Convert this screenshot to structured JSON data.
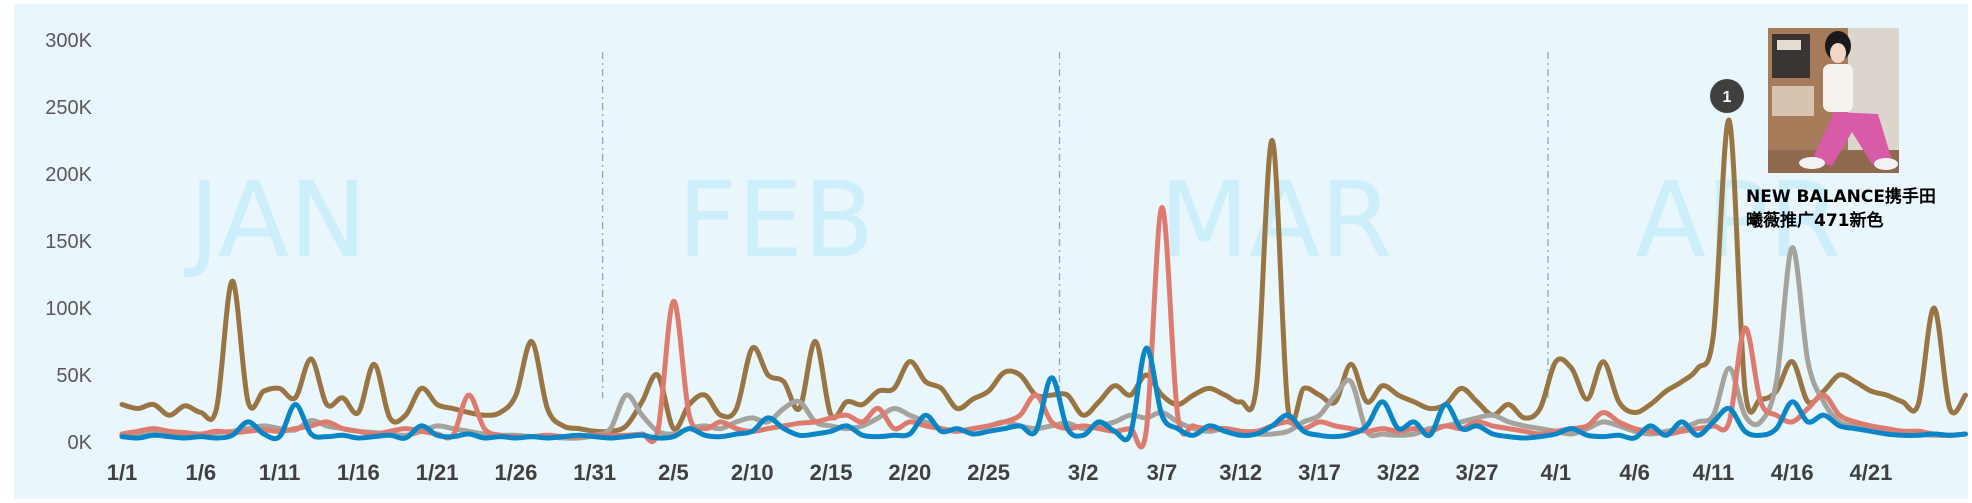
{
  "chart_data": {
    "type": "line",
    "y_ticks": [
      "0K",
      "50K",
      "100K",
      "150K",
      "200K",
      "250K",
      "300K"
    ],
    "ylim": [
      0,
      300000
    ],
    "x_ticks": [
      "1/1",
      "1/6",
      "1/11",
      "1/16",
      "1/21",
      "1/26",
      "1/31",
      "2/5",
      "2/10",
      "2/15",
      "2/20",
      "2/25",
      "3/2",
      "3/7",
      "3/12",
      "3/17",
      "3/22",
      "3/27",
      "4/1",
      "4/6",
      "4/11",
      "4/16",
      "4/21"
    ],
    "x_start": "1/1",
    "x_end": "4/25",
    "grid": false,
    "month_labels": [
      "JAN",
      "FEB",
      "MAR",
      "APR"
    ],
    "month_dividers_after": [
      "1/31",
      "2/29",
      "3/31"
    ],
    "annotation": {
      "badge": "1",
      "text_line1": "NEW BALANCE携手田",
      "text_line2": "曦薇推广471新色",
      "at": "4/11"
    },
    "series": [
      {
        "color": "#997543",
        "values": [
          28,
          25,
          28,
          20,
          27,
          22,
          25,
          120,
          30,
          38,
          40,
          33,
          62,
          28,
          33,
          22,
          58,
          18,
          20,
          40,
          28,
          25,
          22,
          20,
          22,
          35,
          75,
          25,
          12,
          10,
          8,
          8,
          12,
          30,
          50,
          10,
          28,
          35,
          20,
          25,
          70,
          50,
          45,
          25,
          75,
          20,
          30,
          28,
          38,
          40,
          60,
          45,
          40,
          25,
          32,
          38,
          52,
          50,
          35,
          35,
          35,
          20,
          30,
          42,
          35,
          50,
          35,
          28,
          35,
          40,
          35,
          30,
          42,
          225,
          25,
          40,
          35,
          30,
          58,
          30,
          42,
          35,
          30,
          25,
          28,
          40,
          30,
          20,
          28,
          18,
          25,
          60,
          55,
          32,
          60,
          30,
          22,
          28,
          38,
          45,
          55,
          80,
          240,
          40,
          32,
          38,
          60,
          30,
          38,
          50,
          45,
          38,
          35,
          30,
          28,
          100,
          25,
          35
        ]
      },
      {
        "color": "#a6a29c",
        "values": [
          5,
          6,
          8,
          7,
          6,
          5,
          7,
          8,
          10,
          12,
          10,
          9,
          16,
          12,
          10,
          8,
          7,
          6,
          5,
          8,
          12,
          10,
          8,
          6,
          5,
          5,
          4,
          4,
          3,
          3,
          5,
          10,
          35,
          20,
          8,
          6,
          10,
          12,
          10,
          15,
          18,
          15,
          25,
          30,
          15,
          12,
          10,
          12,
          18,
          25,
          20,
          15,
          10,
          8,
          10,
          12,
          15,
          12,
          10,
          12,
          14,
          10,
          12,
          15,
          20,
          18,
          22,
          15,
          10,
          8,
          10,
          8,
          6,
          6,
          8,
          15,
          20,
          35,
          45,
          8,
          6,
          5,
          6,
          10,
          12,
          15,
          18,
          20,
          15,
          12,
          10,
          8,
          6,
          10,
          15,
          12,
          8,
          6,
          8,
          10,
          15,
          20,
          55,
          20,
          15,
          45,
          145,
          60,
          30,
          15,
          12,
          10,
          8,
          8,
          6,
          5,
          5,
          6
        ]
      },
      {
        "color": "#de7b6f",
        "values": [
          6,
          8,
          10,
          8,
          7,
          6,
          8,
          7,
          8,
          9,
          8,
          10,
          12,
          15,
          10,
          8,
          6,
          8,
          10,
          8,
          6,
          5,
          35,
          10,
          5,
          4,
          4,
          5,
          4,
          4,
          5,
          5,
          5,
          6,
          8,
          105,
          20,
          10,
          15,
          10,
          8,
          10,
          12,
          14,
          15,
          18,
          20,
          15,
          25,
          10,
          15,
          12,
          10,
          8,
          10,
          12,
          15,
          20,
          35,
          15,
          10,
          12,
          10,
          8,
          10,
          8,
          175,
          20,
          12,
          10,
          10,
          8,
          8,
          12,
          15,
          10,
          15,
          12,
          10,
          8,
          10,
          8,
          10,
          8,
          12,
          10,
          15,
          12,
          10,
          8,
          6,
          8,
          10,
          12,
          22,
          15,
          10,
          8,
          6,
          8,
          10,
          12,
          15,
          85,
          30,
          20,
          15,
          25,
          35,
          20,
          15,
          12,
          10,
          8,
          8,
          6,
          5,
          6
        ]
      },
      {
        "color": "#0a86c7",
        "values": [
          4,
          3,
          5,
          4,
          3,
          4,
          3,
          5,
          15,
          6,
          4,
          28,
          6,
          4,
          5,
          3,
          4,
          5,
          3,
          12,
          5,
          4,
          6,
          3,
          4,
          3,
          4,
          3,
          4,
          5,
          4,
          3,
          4,
          5,
          3,
          4,
          10,
          5,
          4,
          6,
          8,
          18,
          10,
          5,
          6,
          8,
          12,
          5,
          4,
          5,
          6,
          20,
          8,
          10,
          6,
          8,
          10,
          12,
          8,
          48,
          10,
          5,
          15,
          8,
          6,
          70,
          20,
          10,
          5,
          12,
          8,
          5,
          6,
          12,
          20,
          8,
          5,
          4,
          6,
          12,
          30,
          10,
          15,
          5,
          28,
          10,
          12,
          6,
          4,
          3,
          4,
          6,
          10,
          5,
          4,
          5,
          3,
          12,
          5,
          15,
          5,
          15,
          25,
          8,
          5,
          10,
          30,
          15,
          20,
          12,
          10,
          8,
          6,
          5,
          5,
          6,
          5,
          6
        ]
      }
    ]
  }
}
